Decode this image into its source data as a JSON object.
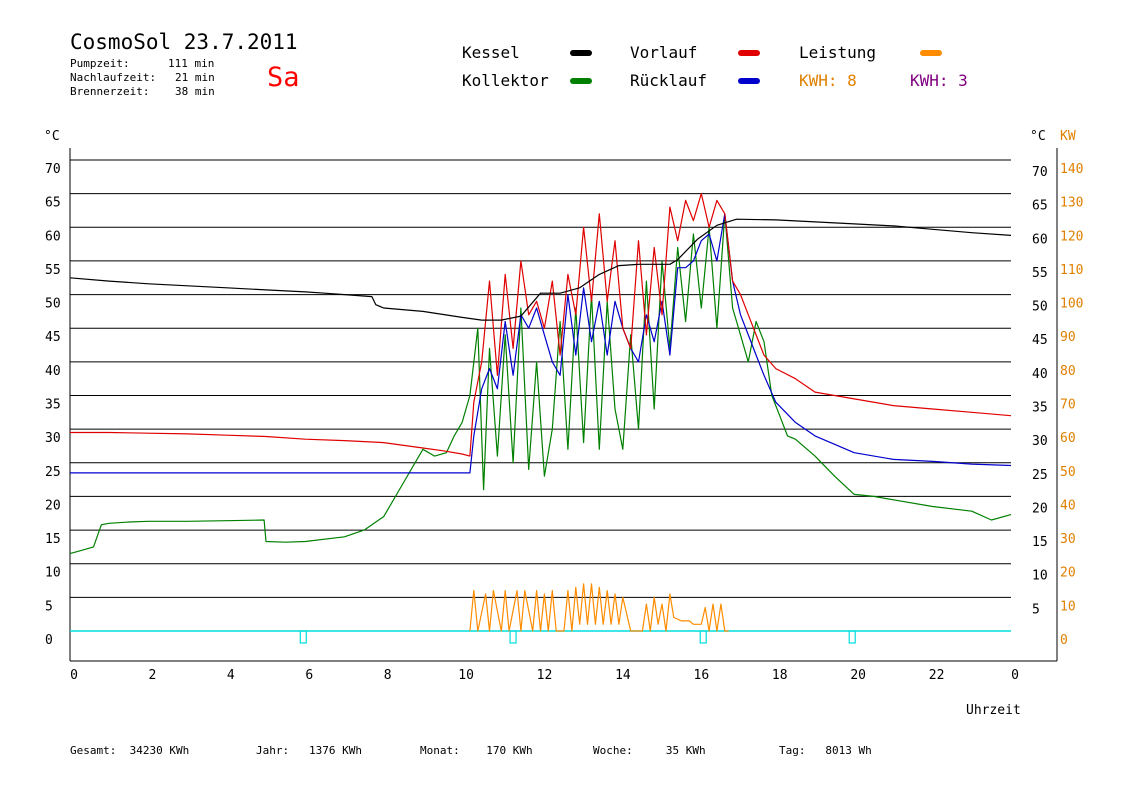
{
  "header": {
    "title": "CosmoSol 23.7.2011",
    "day": "Sa",
    "info": [
      {
        "label": "Pumpzeit:",
        "value": "111 min"
      },
      {
        "label": "Nachlaufzeit:",
        "value": "21 min"
      },
      {
        "label": "Brennerzeit:",
        "value": "38 min"
      }
    ]
  },
  "legend": {
    "kessel": {
      "label": "Kessel",
      "color": "#000000"
    },
    "kollektor": {
      "label": "Kollektor",
      "color": "#008000"
    },
    "vorlauf": {
      "label": "Vorlauf",
      "color": "#e00000"
    },
    "ruecklauf": {
      "label": "Rücklauf",
      "color": "#0000cc"
    },
    "leistung": {
      "label": "Leistung",
      "color": "#ff8c00"
    },
    "kwh1": {
      "label": "KWH:",
      "value": "8",
      "color": "#e08000"
    },
    "kwh2": {
      "label": "KWH:",
      "value": "3",
      "color": "#800080"
    }
  },
  "footer": [
    {
      "label": "Gesamt:",
      "value": "34230 KWh"
    },
    {
      "label": "Jahr:",
      "value": "1376 KWh"
    },
    {
      "label": "Monat:",
      "value": "170 KWh"
    },
    {
      "label": "Woche:",
      "value": "35 KWh"
    },
    {
      "label": "Tag:",
      "value": "8013 Wh"
    }
  ],
  "chart_data": {
    "type": "line",
    "xlabel": "Uhrzeit",
    "ylabel_left": "°C",
    "ylabel_right_temp": "°C",
    "ylabel_right_power": "KW",
    "xlim": [
      0,
      24
    ],
    "ylim": [
      0,
      70
    ],
    "x_ticks": [
      "0",
      "2",
      "4",
      "6",
      "8",
      "10",
      "12",
      "14",
      "16",
      "18",
      "20",
      "22",
      "0"
    ],
    "y_ticks_left": [
      "0",
      "5",
      "10",
      "15",
      "20",
      "25",
      "30",
      "35",
      "40",
      "45",
      "50",
      "55",
      "60",
      "65",
      "70"
    ],
    "y_ticks_right_temp": [
      "5",
      "10",
      "15",
      "20",
      "25",
      "30",
      "35",
      "40",
      "45",
      "50",
      "55",
      "60",
      "65",
      "70"
    ],
    "y_ticks_right_power": [
      "0",
      "10",
      "20",
      "30",
      "40",
      "50",
      "60",
      "70",
      "80",
      "90",
      "100",
      "110",
      "120",
      "130",
      "140"
    ],
    "colors": {
      "kessel": "#000000",
      "kollektor": "#008000",
      "vorlauf": "#e00000",
      "ruecklauf": "#0000cc",
      "leistung": "#ff8c00",
      "marker": "#00dede",
      "power_axis": "#e08000"
    },
    "series": [
      {
        "name": "Kessel",
        "key": "kessel",
        "x": [
          0,
          1,
          2,
          3,
          4,
          5,
          6,
          6.5,
          7,
          7.7,
          7.8,
          8,
          9,
          10,
          10.5,
          11,
          11.5,
          12,
          12.5,
          13,
          13.5,
          14,
          14.5,
          15,
          15.3,
          15.5,
          16,
          16.5,
          17,
          18,
          19,
          20,
          21,
          22,
          23,
          24
        ],
        "y": [
          52.5,
          52,
          51.6,
          51.3,
          51,
          50.7,
          50.4,
          50.2,
          50,
          49.7,
          48.5,
          48,
          47.5,
          46.6,
          46.2,
          46.2,
          46.8,
          50.2,
          50.2,
          51,
          53,
          54.3,
          54.5,
          54.5,
          54.5,
          55.2,
          58.2,
          60.3,
          61.2,
          61.1,
          60.8,
          60.5,
          60.2,
          59.7,
          59.2,
          58.8
        ]
      },
      {
        "name": "Kollektor",
        "key": "kollektor",
        "x": [
          0,
          0.3,
          0.6,
          0.8,
          1,
          1.5,
          2,
          3,
          4,
          4.95,
          5,
          5.5,
          6,
          7,
          7.5,
          8,
          8.5,
          9,
          9.3,
          9.6,
          9.8,
          10,
          10.2,
          10.4,
          10.55,
          10.7,
          10.9,
          11.1,
          11.3,
          11.5,
          11.7,
          11.9,
          12.1,
          12.3,
          12.5,
          12.7,
          12.9,
          13.1,
          13.3,
          13.5,
          13.7,
          13.9,
          14.1,
          14.3,
          14.5,
          14.7,
          14.9,
          15.1,
          15.3,
          15.5,
          15.7,
          15.9,
          16.1,
          16.3,
          16.5,
          16.7,
          16.9,
          17.1,
          17.3,
          17.5,
          17.7,
          17.9,
          18.1,
          18.3,
          18.5,
          19,
          19.5,
          20,
          20.5,
          21,
          22,
          23,
          23.5,
          24
        ],
        "y": [
          11.5,
          12,
          12.5,
          15.8,
          16,
          16.2,
          16.3,
          16.3,
          16.4,
          16.5,
          13.3,
          13.2,
          13.3,
          14,
          15,
          17,
          22,
          27,
          26,
          26.5,
          29,
          31,
          35,
          45,
          21,
          42,
          26,
          44,
          25,
          48,
          24,
          40,
          23,
          30,
          46,
          27,
          48,
          28,
          50,
          27,
          49,
          33,
          27,
          44,
          30,
          52,
          33,
          55,
          42,
          57,
          46,
          59,
          48,
          60,
          45,
          62,
          48,
          44,
          40,
          46,
          43,
          35,
          32,
          29,
          28.5,
          26,
          23,
          20.3,
          20,
          19.5,
          18.5,
          17.8,
          16.5,
          17.3
        ]
      },
      {
        "name": "Vorlauf",
        "key": "vorlauf",
        "x": [
          0,
          1,
          2,
          3,
          4,
          5,
          6,
          7,
          8,
          9,
          9.5,
          10,
          10.2,
          10.3,
          10.5,
          10.7,
          10.9,
          11.1,
          11.3,
          11.5,
          11.7,
          11.9,
          12.1,
          12.3,
          12.5,
          12.7,
          12.9,
          13.1,
          13.3,
          13.5,
          13.7,
          13.9,
          14.1,
          14.3,
          14.5,
          14.7,
          14.9,
          15.1,
          15.3,
          15.5,
          15.7,
          15.9,
          16.1,
          16.3,
          16.5,
          16.7,
          16.9,
          17.1,
          17.3,
          17.5,
          17.7,
          18,
          18.5,
          19,
          20,
          21,
          22,
          23,
          24
        ],
        "y": [
          29.5,
          29.5,
          29.4,
          29.3,
          29.1,
          28.9,
          28.5,
          28.3,
          28,
          27.2,
          26.8,
          26.3,
          26,
          34,
          40,
          52,
          38,
          53,
          42,
          55,
          47,
          49,
          45,
          52,
          41,
          53,
          47,
          60,
          49,
          62,
          49,
          58,
          45,
          42,
          58,
          44,
          57,
          47,
          63,
          58,
          64,
          61,
          65,
          60,
          64,
          62,
          52,
          50,
          47,
          44,
          41,
          39,
          37.5,
          35.5,
          34.5,
          33.5,
          33,
          32.5,
          32
        ]
      },
      {
        "name": "Rücklauf",
        "key": "ruecklauf",
        "x": [
          0,
          1,
          2,
          3,
          4,
          5,
          6,
          7,
          8,
          9,
          10,
          10.2,
          10.3,
          10.5,
          10.7,
          10.9,
          11.1,
          11.3,
          11.5,
          11.7,
          11.9,
          12.1,
          12.3,
          12.5,
          12.7,
          12.9,
          13.1,
          13.3,
          13.5,
          13.7,
          13.9,
          14.1,
          14.3,
          14.5,
          14.7,
          14.9,
          15.1,
          15.3,
          15.5,
          15.7,
          15.9,
          16.1,
          16.3,
          16.5,
          16.7,
          16.9,
          17.1,
          17.3,
          17.5,
          17.7,
          18,
          18.5,
          19,
          20,
          21,
          22,
          23,
          24
        ],
        "y": [
          23.5,
          23.5,
          23.5,
          23.5,
          23.5,
          23.5,
          23.5,
          23.5,
          23.5,
          23.5,
          23.5,
          23.5,
          29,
          36,
          39,
          36,
          46,
          38,
          47,
          45,
          48,
          44,
          40,
          38,
          50,
          41,
          51,
          43,
          49,
          41,
          49,
          45,
          42,
          40,
          47,
          43,
          49,
          41,
          54,
          54,
          55,
          58,
          59,
          55,
          62,
          52,
          47,
          44,
          41,
          38,
          34,
          31,
          29,
          26.5,
          25.5,
          25.2,
          24.8,
          24.6
        ]
      },
      {
        "name": "Leistung",
        "key": "leistung",
        "x": [
          10.2,
          10.3,
          10.4,
          10.6,
          10.7,
          10.8,
          11,
          11.1,
          11.2,
          11.4,
          11.5,
          11.6,
          11.8,
          11.9,
          12.0,
          12.1,
          12.2,
          12.3,
          12.4,
          12.6,
          12.7,
          12.8,
          12.9,
          13.0,
          13.1,
          13.2,
          13.3,
          13.4,
          13.5,
          13.6,
          13.7,
          13.8,
          13.9,
          14.0,
          14.1,
          14.3,
          14.4,
          14.6,
          14.7,
          14.8,
          14.9,
          15.0,
          15.1,
          15.2,
          15.3,
          15.4,
          15.6,
          15.7,
          15.8,
          15.9,
          16.0,
          16.1,
          16.2,
          16.3,
          16.4,
          16.5,
          16.6,
          16.7,
          16.8
        ],
        "y": [
          0,
          6,
          0,
          5.5,
          0,
          6,
          0,
          6,
          0,
          6,
          0,
          6,
          0,
          6,
          0,
          5.5,
          0,
          6,
          0,
          0,
          6,
          0,
          6.5,
          1,
          7,
          1,
          7,
          1,
          6.5,
          1,
          6,
          1,
          5.5,
          1,
          5,
          0,
          0,
          0,
          4,
          0,
          5,
          1,
          4,
          0,
          5.5,
          2,
          1.5,
          1.5,
          1.5,
          1,
          1,
          1,
          3.5,
          0,
          4,
          0,
          4,
          0,
          0
        ]
      }
    ],
    "marker_x": [
      5.95,
      11.3,
      16.15,
      19.95
    ]
  }
}
